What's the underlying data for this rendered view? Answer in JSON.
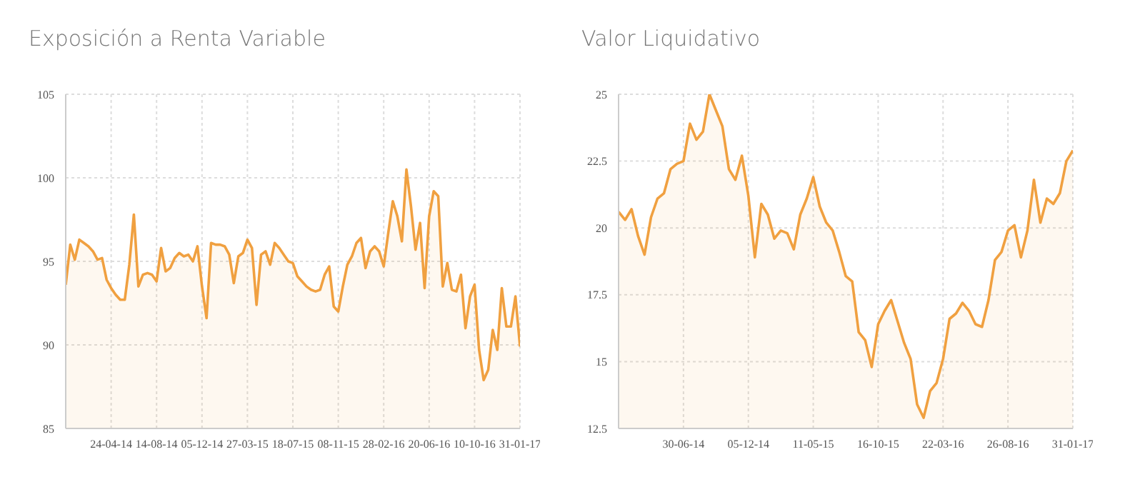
{
  "chart_data": [
    {
      "type": "area",
      "title": "Exposición a Renta Variable",
      "color": "#f0a040",
      "grid": true,
      "ylim": [
        85,
        105
      ],
      "yticks": [
        85,
        90,
        95,
        100,
        105
      ],
      "categories": [
        null,
        null,
        null,
        null,
        null,
        null,
        null,
        null,
        null,
        null,
        "24-04-14",
        null,
        null,
        null,
        null,
        null,
        null,
        null,
        null,
        null,
        "14-08-14",
        null,
        null,
        null,
        null,
        null,
        null,
        null,
        null,
        null,
        "05-12-14",
        null,
        null,
        null,
        null,
        null,
        null,
        null,
        null,
        null,
        "27-03-15",
        null,
        null,
        null,
        null,
        null,
        null,
        null,
        null,
        null,
        "18-07-15",
        null,
        null,
        null,
        null,
        null,
        null,
        null,
        null,
        null,
        "08-11-15",
        null,
        null,
        null,
        null,
        null,
        null,
        null,
        null,
        null,
        "28-02-16",
        null,
        null,
        null,
        null,
        null,
        null,
        null,
        null,
        null,
        "20-06-16",
        null,
        null,
        null,
        null,
        null,
        null,
        null,
        null,
        null,
        "10-10-16",
        null,
        null,
        null,
        null,
        null,
        null,
        null,
        null,
        null,
        "31-01-17"
      ],
      "values": [
        93.6,
        96.0,
        95.1,
        96.3,
        96.1,
        95.9,
        95.6,
        95.1,
        95.2,
        93.9,
        93.4,
        93.0,
        92.7,
        92.7,
        94.8,
        97.8,
        93.5,
        94.2,
        94.3,
        94.2,
        93.8,
        95.8,
        94.4,
        94.6,
        95.2,
        95.5,
        95.3,
        95.4,
        95.0,
        95.9,
        93.5,
        91.6,
        96.1,
        96.0,
        96.0,
        95.9,
        95.4,
        93.7,
        95.3,
        95.5,
        96.3,
        95.8,
        92.4,
        95.4,
        95.6,
        94.8,
        96.1,
        95.8,
        95.4,
        95.0,
        94.9,
        94.1,
        93.8,
        93.5,
        93.3,
        93.2,
        93.3,
        94.2,
        94.7,
        92.3,
        92.0,
        93.5,
        94.8,
        95.3,
        96.1,
        96.4,
        94.6,
        95.6,
        95.9,
        95.6,
        94.7,
        96.7,
        98.6,
        97.7,
        96.2,
        100.5,
        98.3,
        95.7,
        97.3,
        93.4,
        97.7,
        99.2,
        98.9,
        93.5,
        94.9,
        93.3,
        93.2,
        94.2,
        91.0,
        92.9,
        93.6,
        89.7,
        87.9,
        88.5,
        90.9,
        89.7,
        93.4,
        91.1,
        91.1,
        92.9,
        89.9
      ]
    },
    {
      "type": "area",
      "title": "Valor Liquidativo",
      "color": "#f0a040",
      "grid": true,
      "ylim": [
        12.5,
        25
      ],
      "yticks": [
        12.5,
        15,
        17.5,
        20,
        22.5,
        25
      ],
      "categories": [
        null,
        null,
        null,
        null,
        null,
        null,
        null,
        null,
        null,
        null,
        "30-06-14",
        null,
        null,
        null,
        null,
        null,
        null,
        null,
        null,
        null,
        "05-12-14",
        null,
        null,
        null,
        null,
        null,
        null,
        null,
        null,
        null,
        "11-05-15",
        null,
        null,
        null,
        null,
        null,
        null,
        null,
        null,
        null,
        "16-10-15",
        null,
        null,
        null,
        null,
        null,
        null,
        null,
        null,
        null,
        "22-03-16",
        null,
        null,
        null,
        null,
        null,
        null,
        null,
        null,
        null,
        "26-08-16",
        null,
        null,
        null,
        null,
        null,
        null,
        null,
        null,
        null,
        "31-01-17"
      ],
      "values": [
        20.6,
        20.3,
        20.7,
        19.7,
        19.0,
        20.4,
        21.1,
        21.3,
        22.2,
        22.4,
        22.5,
        23.9,
        23.3,
        23.6,
        25.0,
        24.4,
        23.8,
        22.2,
        21.8,
        22.7,
        21.2,
        18.9,
        20.9,
        20.5,
        19.6,
        19.9,
        19.8,
        19.2,
        20.5,
        21.1,
        21.9,
        20.8,
        20.2,
        19.9,
        19.1,
        18.2,
        18.0,
        16.1,
        15.8,
        14.8,
        16.4,
        16.9,
        17.3,
        16.5,
        15.7,
        15.1,
        13.4,
        12.9,
        13.9,
        14.2,
        15.1,
        16.6,
        16.8,
        17.2,
        16.9,
        16.4,
        16.3,
        17.3,
        18.8,
        19.1,
        19.9,
        20.1,
        18.9,
        19.9,
        21.8,
        20.2,
        21.1,
        20.9,
        21.3,
        22.5,
        22.9
      ]
    }
  ]
}
